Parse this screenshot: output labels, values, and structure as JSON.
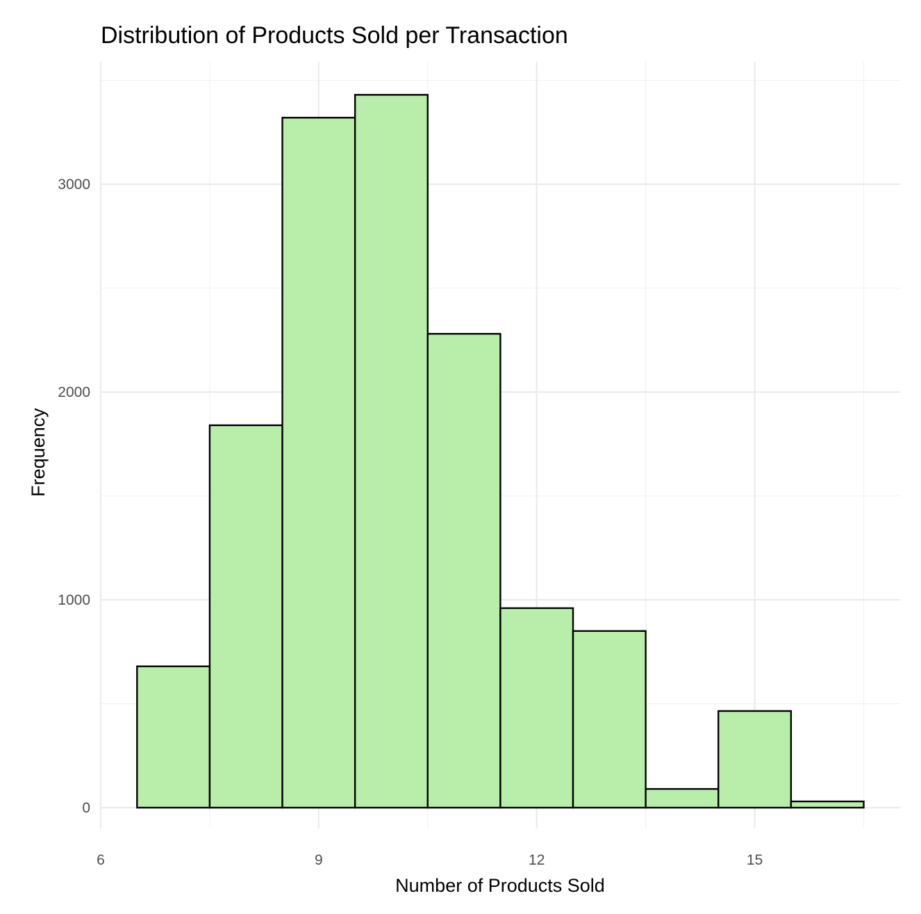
{
  "chart_data": {
    "type": "bar",
    "title": "Distribution of Products Sold per Transaction",
    "xlabel": "Number of Products Sold",
    "ylabel": "Frequency",
    "x": [
      7,
      8,
      9,
      10,
      11,
      12,
      13,
      14,
      15,
      16
    ],
    "values": [
      680,
      1840,
      3320,
      3430,
      2280,
      960,
      850,
      90,
      465,
      30
    ],
    "bin_width": 1,
    "xlim": [
      6,
      16.7
    ],
    "ylim": [
      -150,
      3600
    ],
    "x_ticks": [
      6,
      9,
      12,
      15
    ],
    "x_tick_labels": [
      "6",
      "9",
      "12",
      "15"
    ],
    "y_ticks": [
      0,
      1000,
      2000,
      3000
    ],
    "y_tick_labels": [
      "0",
      "1000",
      "2000",
      "3000"
    ],
    "grid": true,
    "legend": false,
    "colors": {
      "bar_fill": "#b8eeaa",
      "bar_outline": "#000000",
      "grid_major": "#ebebeb",
      "grid_minor": "#f2f2f2",
      "background": "#ffffff"
    }
  }
}
